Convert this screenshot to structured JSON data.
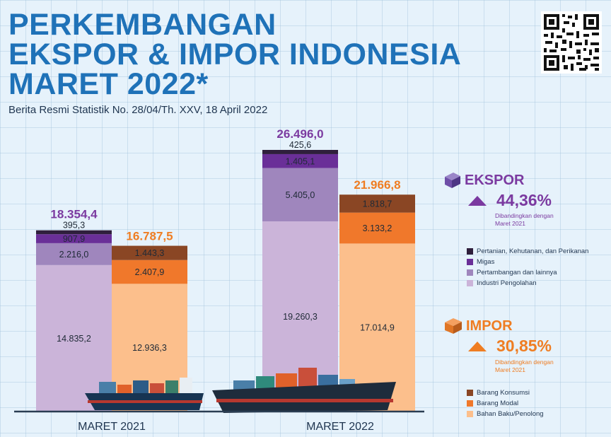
{
  "header": {
    "title_line1": "PERKEMBANGAN",
    "title_line2": "EKSPOR & IMPOR INDONESIA",
    "title_line3": "MARET 2022*",
    "subtitle": "Berita Resmi Statistik No. 28/04/Th. XXV, 18 April 2022"
  },
  "colors": {
    "title": "#1f72b8",
    "ekspor_total": "#7b3aa0",
    "impor_total": "#ef7d22",
    "ekspor_segments": [
      "#cbb4d9",
      "#9f86bd",
      "#6a2f98",
      "#2f1f3c"
    ],
    "impor_segments": [
      "#fcbf8c",
      "#f0782b",
      "#8a4624"
    ]
  },
  "ekspor_info": {
    "label": "EKSPOR",
    "change": "44,36%",
    "note_line1": "Dibandingkan dengan",
    "note_line2": "Maret 2021",
    "legend": [
      "Pertanian, Kehutanan, dan Perikanan",
      "Migas",
      "Pertambangan dan lainnya",
      "Industri Pengolahan"
    ]
  },
  "impor_info": {
    "label": "IMPOR",
    "change": "30,85%",
    "note_line1": "Dibandingkan dengan",
    "note_line2": "Maret 2021",
    "legend": [
      "Barang Konsumsi",
      "Barang Modal",
      "Bahan Baku/Penolong"
    ]
  },
  "chart_data": {
    "type": "bar",
    "stacked": true,
    "categories": [
      "MARET 2021",
      "MARET 2022"
    ],
    "series_groups": [
      {
        "name": "EKSPOR",
        "totals": [
          18354.4,
          26496.0
        ],
        "total_labels": [
          "18.354,4",
          "26.496,0"
        ],
        "segments": [
          {
            "name": "Industri Pengolahan",
            "values": [
              14835.2,
              19260.3
            ],
            "labels": [
              "14.835,2",
              "19.260,3"
            ]
          },
          {
            "name": "Pertambangan dan lainnya",
            "values": [
              2216.0,
              5405.0
            ],
            "labels": [
              "2.216,0",
              "5.405,0"
            ]
          },
          {
            "name": "Migas",
            "values": [
              907.9,
              1405.1
            ],
            "labels": [
              "907,9",
              "1.405,1"
            ]
          },
          {
            "name": "Pertanian, Kehutanan, dan Perikanan",
            "values": [
              395.3,
              425.6
            ],
            "labels": [
              "395,3",
              "425,6"
            ]
          }
        ]
      },
      {
        "name": "IMPOR",
        "totals": [
          16787.5,
          21966.8
        ],
        "total_labels": [
          "16.787,5",
          "21.966,8"
        ],
        "segments": [
          {
            "name": "Bahan Baku/Penolong",
            "values": [
              12936.3,
              17014.9
            ],
            "labels": [
              "12.936,3",
              "17.014,9"
            ]
          },
          {
            "name": "Barang Modal",
            "values": [
              2407.9,
              3133.2
            ],
            "labels": [
              "2.407,9",
              "3.133,2"
            ]
          },
          {
            "name": "Barang Konsumsi",
            "values": [
              1443.3,
              1818.7
            ],
            "labels": [
              "1.443,3",
              "1.818,7"
            ]
          }
        ]
      }
    ]
  }
}
